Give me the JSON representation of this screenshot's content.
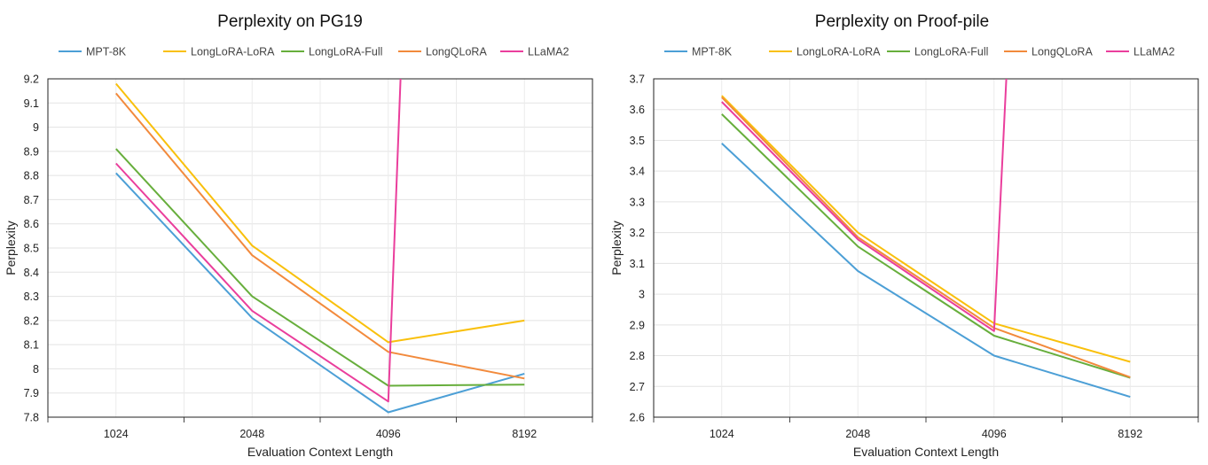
{
  "colors": {
    "MPT-8K": "#4c9fd6",
    "LongLoRA-LoRA": "#f9c00c",
    "LongLoRA-Full": "#67ae3c",
    "LongQLoRA": "#f28a3c",
    "LLaMA2": "#ea3e9c"
  },
  "chart_data": [
    {
      "type": "line",
      "title": "Perplexity on PG19",
      "xlabel": "Evaluation Context Length",
      "ylabel": "Perplexity",
      "categories": [
        "1024",
        "2048",
        "4096",
        "8192"
      ],
      "ylim": [
        7.8,
        9.2
      ],
      "yticks": [
        "7.8",
        "7.9",
        "8",
        "8.1",
        "8.2",
        "8.3",
        "8.4",
        "8.5",
        "8.6",
        "8.7",
        "8.8",
        "8.9",
        "9",
        "9.1",
        "9.2"
      ],
      "grid": true,
      "legend_position": "top",
      "series": [
        {
          "name": "MPT-8K",
          "values": [
            8.81,
            8.21,
            7.82,
            7.98
          ]
        },
        {
          "name": "LongLoRA-LoRA",
          "values": [
            9.18,
            8.51,
            8.11,
            8.2
          ]
        },
        {
          "name": "LongLoRA-Full",
          "values": [
            8.91,
            8.3,
            7.93,
            7.935
          ]
        },
        {
          "name": "LongQLoRA",
          "values": [
            9.14,
            8.47,
            8.07,
            7.96
          ]
        },
        {
          "name": "LLaMA2",
          "values": [
            8.85,
            8.24,
            7.865,
            null
          ],
          "offchart_after": true
        }
      ]
    },
    {
      "type": "line",
      "title": "Perplexity on Proof-pile",
      "xlabel": "Evaluation Context Length",
      "ylabel": "Perplexity",
      "categories": [
        "1024",
        "2048",
        "4096",
        "8192"
      ],
      "ylim": [
        2.6,
        3.7
      ],
      "yticks": [
        "2.6",
        "2.7",
        "2.8",
        "2.9",
        "3",
        "3.1",
        "3.2",
        "3.3",
        "3.4",
        "3.5",
        "3.6",
        "3.7"
      ],
      "grid": true,
      "legend_position": "top",
      "series": [
        {
          "name": "MPT-8K",
          "values": [
            3.49,
            3.075,
            2.8,
            2.666
          ]
        },
        {
          "name": "LongLoRA-LoRA",
          "values": [
            3.645,
            3.2,
            2.905,
            2.78
          ]
        },
        {
          "name": "LongLoRA-Full",
          "values": [
            3.585,
            3.155,
            2.865,
            2.728
          ]
        },
        {
          "name": "LongQLoRA",
          "values": [
            3.64,
            3.185,
            2.89,
            2.73
          ]
        },
        {
          "name": "LLaMA2",
          "values": [
            3.625,
            3.178,
            2.88,
            null
          ],
          "offchart_after": true
        }
      ]
    }
  ]
}
